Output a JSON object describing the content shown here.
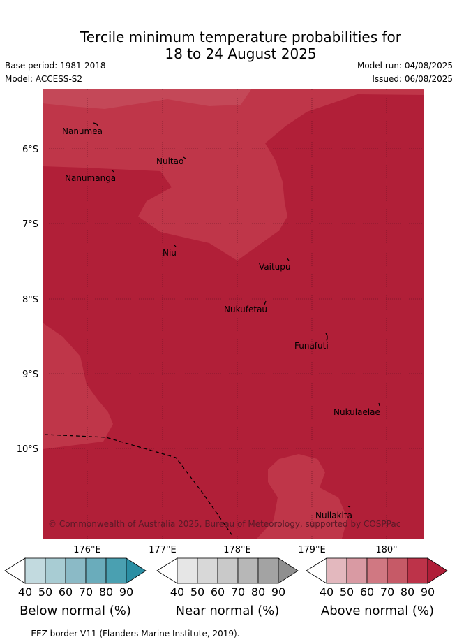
{
  "title_line1": "Tercile minimum temperature probabilities for",
  "title_line2": "18 to 24 August 2025",
  "base_period": "Base period: 1981-2018",
  "model": "Model: ACCESS-S2",
  "model_run": "Model run: 04/08/2025",
  "issued": "Issued: 06/08/2025",
  "lat_labels": [
    "6°S",
    "7°S",
    "8°S",
    "9°S",
    "10°S"
  ],
  "lon_labels": [
    "176°E",
    "177°E",
    "178°E",
    "179°E",
    "180°"
  ],
  "places": [
    "Nanumea",
    "Nuitao",
    "Nanumanga",
    "Niu",
    "Vaitupu",
    "Nukufetau",
    "Funafuti",
    "Nukulaelae",
    "Nuilakita"
  ],
  "copyright": "© Commonwealth of Australia 2025, Bureau of Meteorology, supported by COSPPac",
  "legends": [
    {
      "label": "Below normal (%)",
      "ticks": [
        "40",
        "50",
        "60",
        "70",
        "80",
        "90"
      ],
      "colors": [
        "#c2dadf",
        "#a8ccd3",
        "#8bbac6",
        "#6aacbb",
        "#4aa0b1",
        "#2b8ea3"
      ]
    },
    {
      "label": "Near normal (%)",
      "ticks": [
        "40",
        "50",
        "60",
        "70",
        "80",
        "90"
      ],
      "colors": [
        "#e6e6e6",
        "#d8d8d8",
        "#c9c9c9",
        "#b7b7b7",
        "#a3a3a3",
        "#8f8f8f"
      ]
    },
    {
      "label": "Above normal (%)",
      "ticks": [
        "40",
        "50",
        "60",
        "70",
        "80",
        "90"
      ],
      "colors": [
        "#e3b8be",
        "#d99aa3",
        "#d07882",
        "#c65a67",
        "#bd3349",
        "#b01e38"
      ]
    }
  ],
  "map_colors": {
    "dark": "#b11f38",
    "light": "#bf3649",
    "eez": "#000000"
  },
  "footer": "--  --  -- EEZ border V11 (Flanders Marine Institute, 2019)."
}
